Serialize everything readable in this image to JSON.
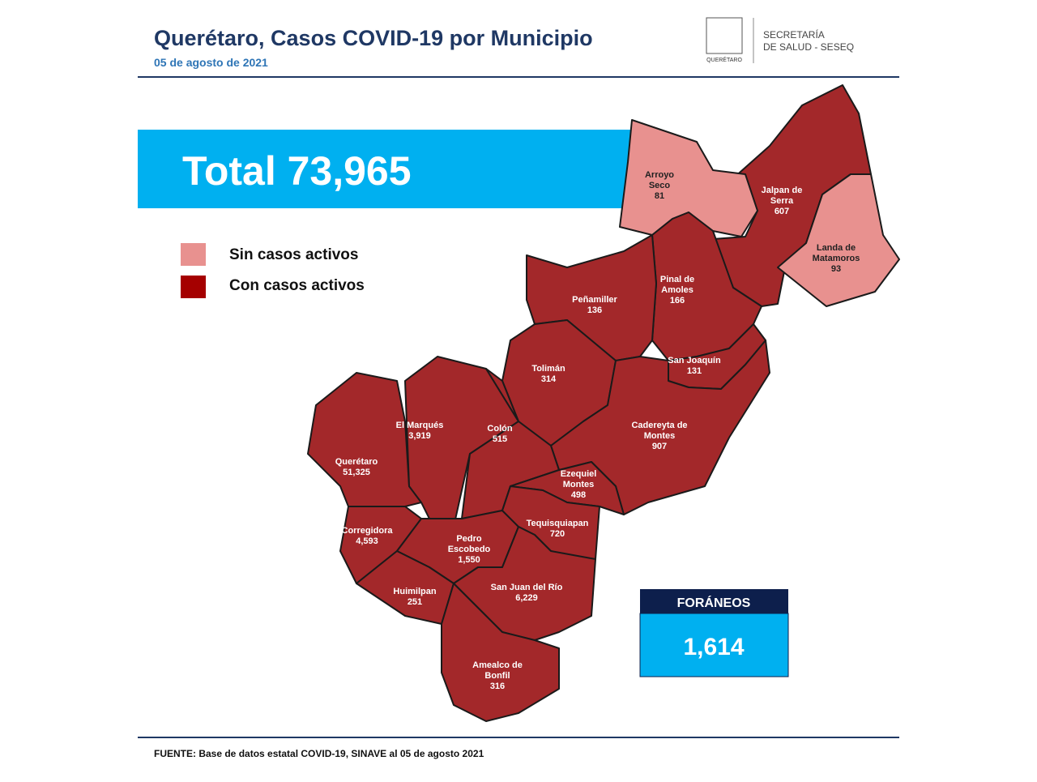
{
  "header": {
    "title": "Querétaro, Casos COVID-19 por Municipio",
    "date": "05 de agosto de 2021",
    "logo_text": "QUERÉTARO",
    "agency": [
      "SECRETARÍA",
      "DE SALUD - SESEQ"
    ]
  },
  "total": "Total 73,965",
  "legend": [
    "Sin casos activos",
    "Con casos activos"
  ],
  "municipalities": [
    {
      "name": [
        "Arroyo",
        "Seco"
      ],
      "cases": "81"
    },
    {
      "name": [
        "Jalpan de",
        "Serra"
      ],
      "cases": "607"
    },
    {
      "name": [
        "Landa de",
        "Matamoros"
      ],
      "cases": "93"
    },
    {
      "name": [
        "Pinal de",
        "Amoles"
      ],
      "cases": "166"
    },
    {
      "name": [
        "Peñamiller"
      ],
      "cases": "136"
    },
    {
      "name": [
        "San Joaquín"
      ],
      "cases": "131"
    },
    {
      "name": [
        "Tolimán"
      ],
      "cases": "314"
    },
    {
      "name": [
        "Cadereyta de",
        "Montes"
      ],
      "cases": "907"
    },
    {
      "name": [
        "El  Marqués"
      ],
      "cases": "3,919"
    },
    {
      "name": [
        "Colón"
      ],
      "cases": "515"
    },
    {
      "name": [
        "Querétaro"
      ],
      "cases": "51,325"
    },
    {
      "name": [
        "Ezequiel",
        "Montes"
      ],
      "cases": "498"
    },
    {
      "name": [
        "Corregidora"
      ],
      "cases": "4,593"
    },
    {
      "name": [
        "Tequisquiapan"
      ],
      "cases": "720"
    },
    {
      "name": [
        "Pedro",
        "Escobedo"
      ],
      "cases": "1,550"
    },
    {
      "name": [
        "Huimilpan"
      ],
      "cases": "251"
    },
    {
      "name": [
        "San Juan del Río"
      ],
      "cases": "6,229"
    },
    {
      "name": [
        "Amealco de",
        "Bonfil"
      ],
      "cases": "316"
    }
  ],
  "foraneos": {
    "label": "FORÁNEOS",
    "value": "1,614"
  },
  "footer": "FUENTE:  Base de datos estatal COVID-19,  SINAVE  al 05 de agosto 2021"
}
